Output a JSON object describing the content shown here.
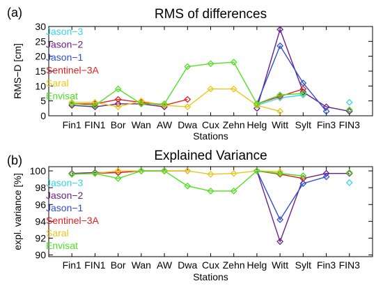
{
  "chart_data": [
    {
      "type": "line",
      "panel_label": "(a)",
      "title": "RMS of differences",
      "xlabel": "Stations",
      "ylabel": "RMS−D [cm]",
      "categories": [
        "Fin1",
        "FIN1",
        "Bor",
        "Wan",
        "AW",
        "Dwa",
        "Cux",
        "Zehn",
        "Helg",
        "Witt",
        "Sylt",
        "Fin3",
        "FIN3"
      ],
      "ylim": [
        0,
        30
      ],
      "yticks": [
        0,
        5,
        10,
        15,
        20,
        25,
        30
      ],
      "legend_position": "top-left",
      "series": [
        {
          "name": "Jason−3",
          "color": "#33d6e8",
          "values": [
            null,
            null,
            null,
            null,
            null,
            null,
            null,
            null,
            3.5,
            6,
            7,
            null,
            4.5
          ]
        },
        {
          "name": "Jason−2",
          "color": "#6a1f8c",
          "values": [
            3.5,
            3,
            4,
            4,
            3,
            null,
            null,
            null,
            2.5,
            29,
            8,
            3,
            1.5
          ]
        },
        {
          "name": "Jason−1",
          "color": "#2f4fd0",
          "values": [
            null,
            null,
            null,
            null,
            null,
            null,
            null,
            null,
            4,
            23.5,
            11,
            1.5,
            null
          ]
        },
        {
          "name": "Sentinel−3A",
          "color": "#e01f1f",
          "values": [
            4,
            4,
            5.5,
            4.5,
            3.5,
            5.5,
            null,
            null,
            4,
            6.5,
            9,
            null,
            null
          ]
        },
        {
          "name": "Saral",
          "color": "#e8c61a",
          "values": [
            4.5,
            4.5,
            3,
            5,
            3.5,
            3,
            9,
            9,
            3.5,
            1.5,
            null,
            null,
            2
          ]
        },
        {
          "name": "Envisat",
          "color": "#4fe020",
          "values": [
            4,
            3.5,
            9,
            4,
            4,
            16.5,
            17.5,
            18,
            4,
            7,
            7.5,
            null,
            2
          ]
        }
      ]
    },
    {
      "type": "line",
      "panel_label": "(b)",
      "title": "Explained Variance",
      "xlabel": "Stations",
      "ylabel": "expl. variance [%]",
      "categories": [
        "Fin1",
        "FIN1",
        "Bor",
        "Wan",
        "AW",
        "Dwa",
        "Cux",
        "Zehn",
        "Helg",
        "Witt",
        "Sylt",
        "Fin3",
        "FIN3"
      ],
      "ylim": [
        89.8,
        100.5
      ],
      "yticks": [
        90,
        92,
        94,
        96,
        98,
        100
      ],
      "legend_position": "left",
      "series": [
        {
          "name": "Jason−3",
          "color": "#33d6e8",
          "values": [
            null,
            null,
            null,
            null,
            null,
            null,
            null,
            null,
            100,
            99.7,
            99.4,
            null,
            98.6
          ]
        },
        {
          "name": "Jason−2",
          "color": "#6a1f8c",
          "values": [
            99.7,
            99.8,
            99.8,
            100,
            100,
            null,
            null,
            null,
            100,
            91.6,
            99.1,
            99.7,
            99.7
          ]
        },
        {
          "name": "Jason−1",
          "color": "#2f4fd0",
          "values": [
            null,
            null,
            null,
            null,
            null,
            null,
            null,
            null,
            100,
            94.2,
            98.5,
            99.3,
            null
          ]
        },
        {
          "name": "Sentinel−3A",
          "color": "#e01f1f",
          "values": [
            99.6,
            99.7,
            99.8,
            100,
            100,
            100,
            null,
            null,
            100,
            99.6,
            99.1,
            null,
            null
          ]
        },
        {
          "name": "Saral",
          "color": "#e8c61a",
          "values": [
            99.6,
            99.7,
            100,
            100,
            100,
            100,
            99.6,
            99.7,
            100,
            99.9,
            null,
            null,
            99.8
          ]
        },
        {
          "name": "Envisat",
          "color": "#4fe020",
          "values": [
            99.6,
            99.7,
            99.1,
            100,
            100,
            98.2,
            97.6,
            97.6,
            100,
            99.7,
            99.4,
            null,
            99.8
          ]
        }
      ]
    }
  ]
}
